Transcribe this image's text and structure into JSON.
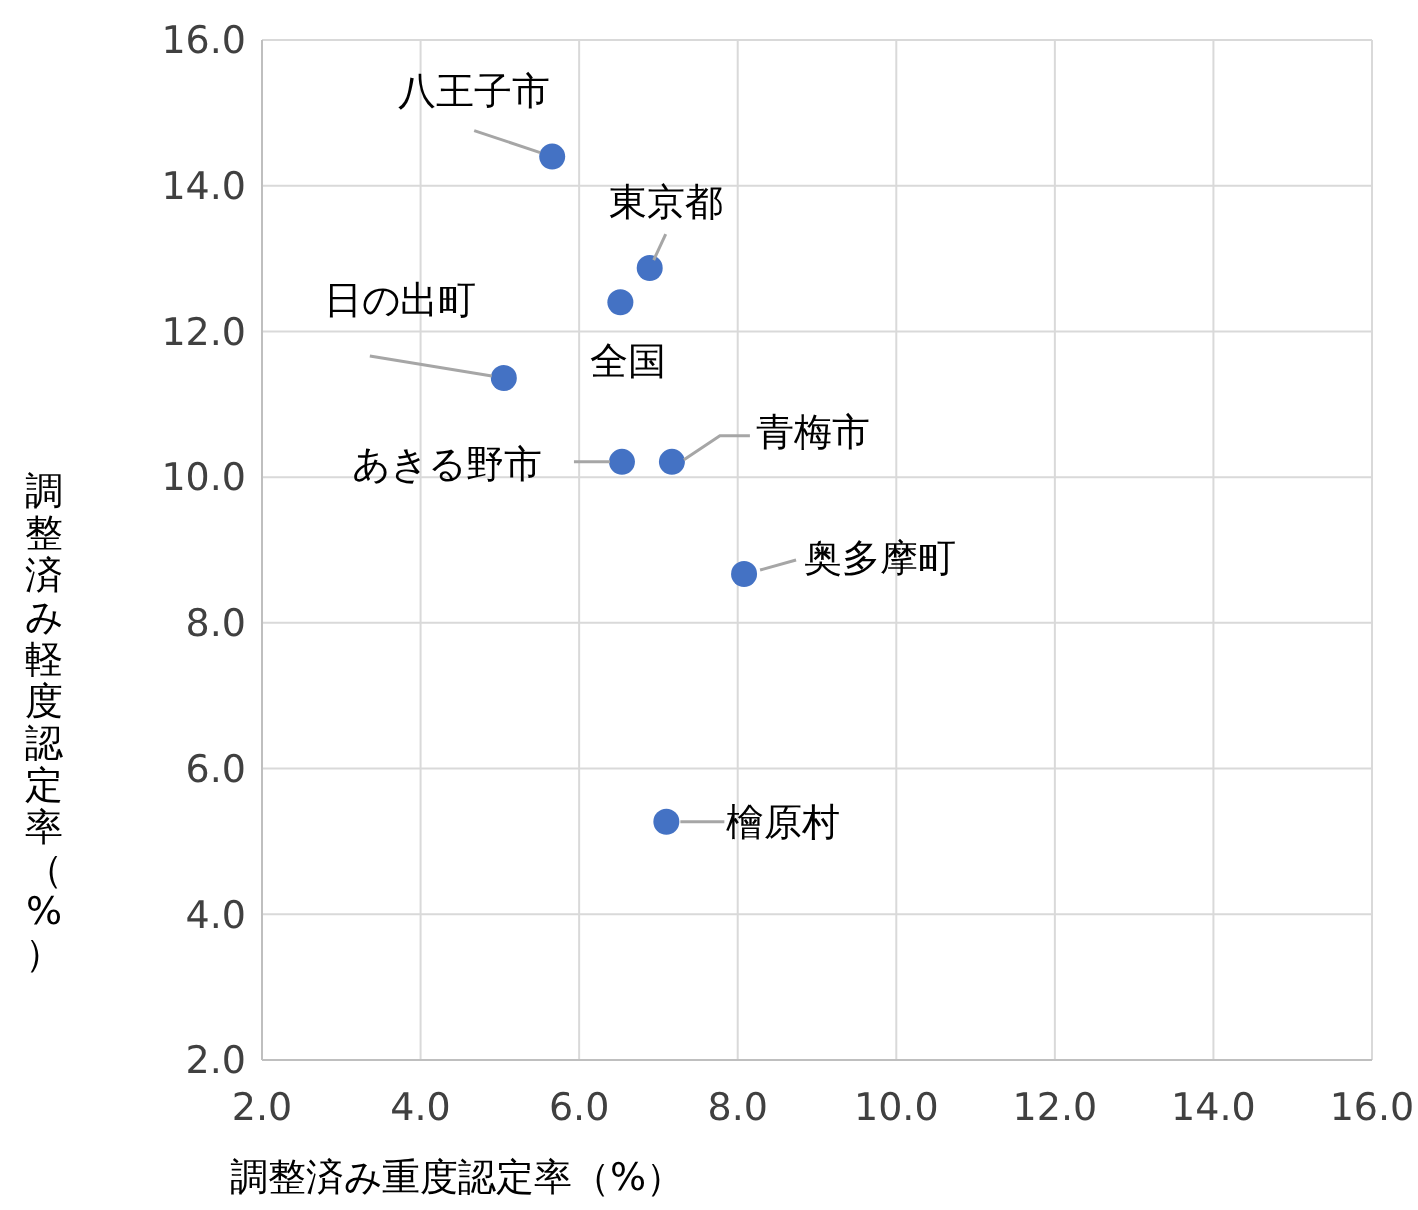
{
  "chart_data": {
    "type": "scatter",
    "xlabel": "調整済み重度認定率（%）",
    "ylabel": "調整済み軽度認定率（%）",
    "x": [
      5.66,
      6.89,
      6.52,
      5.05,
      6.54,
      7.17,
      8.08,
      7.1
    ],
    "series": [
      {
        "color": "#4472c4",
        "values": [
          14.4,
          12.87,
          12.4,
          11.36,
          10.21,
          10.21,
          8.67,
          5.27
        ]
      }
    ],
    "xlim": [
      2,
      16
    ],
    "ylim": [
      2,
      16
    ],
    "xticks": [
      {
        "value": 2,
        "label": "2.0"
      },
      {
        "value": 4,
        "label": "4.0"
      },
      {
        "value": 6,
        "label": "6.0"
      },
      {
        "value": 8,
        "label": "8.0"
      },
      {
        "value": 10,
        "label": "10.0"
      },
      {
        "value": 12,
        "label": "12.0"
      },
      {
        "value": 14,
        "label": "14.0"
      },
      {
        "value": 16,
        "label": "16.0"
      }
    ],
    "yticks": [
      {
        "value": 2,
        "label": "2.0"
      },
      {
        "value": 4,
        "label": "4.0"
      },
      {
        "value": 6,
        "label": "6.0"
      },
      {
        "value": 8,
        "label": "8.0"
      },
      {
        "value": 10,
        "label": "10.0"
      },
      {
        "value": 12,
        "label": "12.0"
      },
      {
        "value": 14,
        "label": "14.0"
      },
      {
        "value": 16,
        "label": "16.0"
      }
    ],
    "grid": true,
    "marker": "circle",
    "annotations": [
      {
        "text": "八王子市",
        "x": 5.66,
        "y": 14.4
      },
      {
        "text": "東京都",
        "x": 6.89,
        "y": 12.87
      },
      {
        "text": "全国",
        "x": 6.52,
        "y": 12.4
      },
      {
        "text": "日の出町",
        "x": 5.05,
        "y": 11.36
      },
      {
        "text": "あきる野市",
        "x": 6.54,
        "y": 10.21
      },
      {
        "text": "青梅市",
        "x": 7.17,
        "y": 10.21
      },
      {
        "text": "奥多摩町",
        "x": 8.08,
        "y": 8.67
      },
      {
        "text": "檜原村",
        "x": 7.1,
        "y": 5.27
      }
    ]
  }
}
